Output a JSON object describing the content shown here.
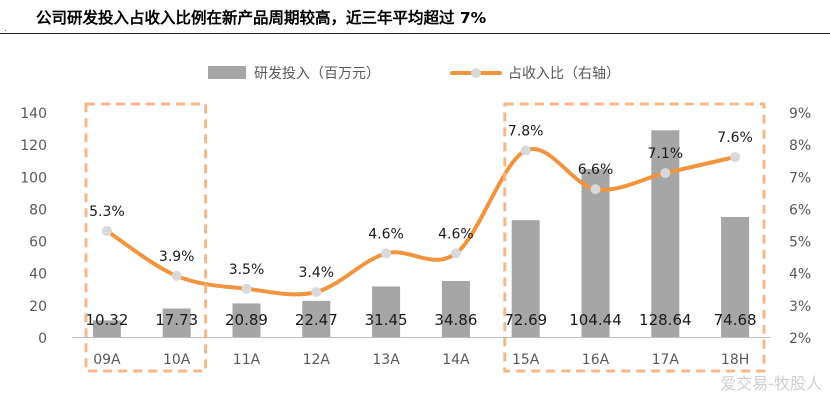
{
  "title": "公司研发投入占收入比例在新产品周期较高，近三年平均超过 7%",
  "corner_mark": ".",
  "watermark": "爱交易-牧股人",
  "colors": {
    "bar": "#a6a6a6",
    "line": "#f0943f",
    "marker": "#d9d9d9",
    "highlight_box": "#f5b88a",
    "axis_text": "#595959"
  },
  "chart_data": {
    "type": "bar",
    "categories": [
      "09A",
      "10A",
      "11A",
      "12A",
      "13A",
      "14A",
      "15A",
      "16A",
      "17A",
      "18H"
    ],
    "series": [
      {
        "name": "研发投入（百万元）",
        "type": "bar",
        "axis": "left",
        "values": [
          10.32,
          17.73,
          20.89,
          22.47,
          31.45,
          34.86,
          72.69,
          104.44,
          128.64,
          74.68
        ],
        "labels": [
          "10.32",
          "17.73",
          "20.89",
          "22.47",
          "31.45",
          "34.86",
          "72.69",
          "104.44",
          "128.64",
          "74.68"
        ]
      },
      {
        "name": "占收入比（右轴）",
        "type": "line",
        "axis": "right",
        "values": [
          5.3,
          3.9,
          3.5,
          3.4,
          4.6,
          4.6,
          7.8,
          6.6,
          7.1,
          7.6
        ],
        "labels": [
          "5.3%",
          "3.9%",
          "3.5%",
          "3.4%",
          "4.6%",
          "4.6%",
          "7.8%",
          "6.6%",
          "7.1%",
          "7.6%"
        ]
      }
    ],
    "y_left": {
      "min": 0,
      "max": 140,
      "ticks": [
        "0",
        "20",
        "40",
        "60",
        "80",
        "100",
        "120",
        "140"
      ]
    },
    "y_right": {
      "min": 2,
      "max": 9,
      "ticks": [
        "2%",
        "3%",
        "4%",
        "5%",
        "6%",
        "7%",
        "8%",
        "9%"
      ]
    },
    "highlight_groups": [
      {
        "from": "09A",
        "to": "10A"
      },
      {
        "from": "15A",
        "to": "18H"
      }
    ],
    "legend": {
      "position": "top"
    }
  }
}
